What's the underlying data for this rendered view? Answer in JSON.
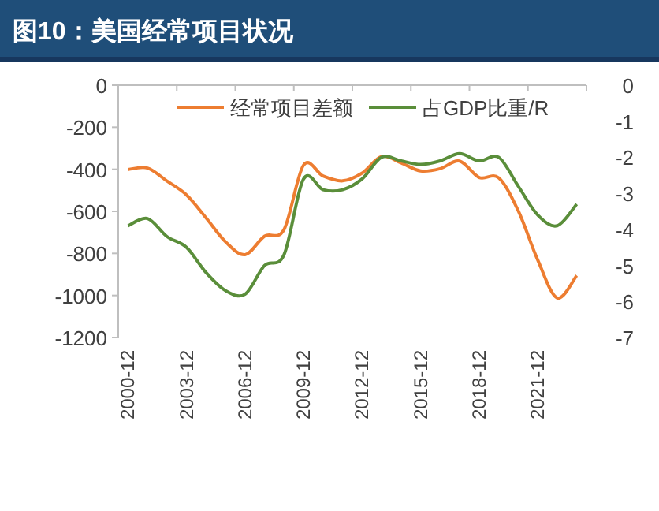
{
  "chart_data": {
    "type": "line",
    "title": "图10：美国经常项目状况",
    "categories": [
      "2000-12",
      null,
      null,
      "2003-12",
      null,
      null,
      "2006-12",
      null,
      null,
      "2009-12",
      null,
      null,
      "2012-12",
      null,
      null,
      "2015-12",
      null,
      null,
      "2018-12",
      null,
      null,
      "2021-12",
      null,
      null
    ],
    "series": [
      {
        "name": "经常项目差额",
        "color": "#ed7d31",
        "values": [
          -401,
          -394,
          -456,
          -522,
          -631,
          -745,
          -806,
          -718,
          -686,
          -380,
          -432,
          -455,
          -418,
          -339,
          -370,
          -408,
          -397,
          -361,
          -439,
          -441,
          -597,
          -831,
          -1012,
          -905
        ]
      },
      {
        "name": "占GDP比重/R",
        "color": "#5a8e3a",
        "axis": "y2",
        "values": [
          -3.9,
          -3.7,
          -4.2,
          -4.5,
          -5.2,
          -5.7,
          -5.8,
          -5.0,
          -4.7,
          -2.6,
          -2.9,
          -2.9,
          -2.6,
          -2.0,
          -2.1,
          -2.2,
          -2.1,
          -1.9,
          -2.1,
          -2.0,
          -2.8,
          -3.6,
          -3.9,
          -3.3
        ]
      }
    ],
    "ylim": [
      -1200,
      0
    ],
    "yticks": [
      -1200,
      -1000,
      -800,
      -600,
      -400,
      -200,
      0
    ],
    "y2lim": [
      -7,
      0
    ],
    "y2ticks": [
      -7,
      -6,
      -5,
      -4,
      -3,
      -2,
      -1,
      0
    ],
    "grid": false,
    "legend": "top",
    "marker": "none",
    "line_style": "solid"
  }
}
